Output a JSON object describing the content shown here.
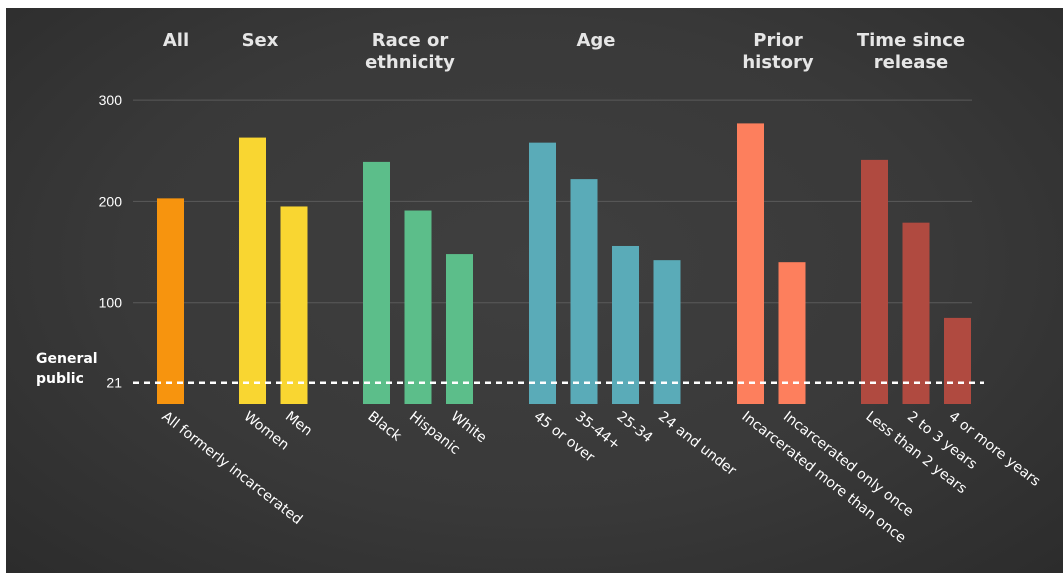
{
  "chart_data": {
    "type": "bar",
    "ylim": [
      0,
      300
    ],
    "yticks": [
      100,
      200,
      300
    ],
    "grid": true,
    "reference_line": {
      "value": 21,
      "label": "21",
      "name": "General public"
    },
    "groups": [
      {
        "header": "All",
        "color": "#f7940e",
        "categories": [
          "All formerly incarcerated"
        ],
        "values": [
          203
        ]
      },
      {
        "header": "Sex",
        "color": "#f9d631",
        "categories": [
          "Women",
          "Men"
        ],
        "values": [
          263,
          195
        ]
      },
      {
        "header": "Race or ethnicity",
        "color": "#5cbe8a",
        "categories": [
          "Black",
          "Hispanic",
          "White"
        ],
        "values": [
          239,
          191,
          148
        ]
      },
      {
        "header": "Age",
        "color": "#5aabb8",
        "categories": [
          "45 or over",
          "35-44+",
          "25-34",
          "24 and under"
        ],
        "values": [
          258,
          222,
          156,
          142
        ]
      },
      {
        "header": "Prior history",
        "color": "#fd7f5d",
        "categories": [
          "Incarcerated more than once",
          "Incarcerated only once"
        ],
        "values": [
          277,
          140
        ]
      },
      {
        "header": "Time since release",
        "color": "#b04a40",
        "categories": [
          "Less than 2 years",
          "2 to 3 years",
          "4 or more years"
        ],
        "values": [
          241,
          179,
          85
        ]
      }
    ]
  }
}
